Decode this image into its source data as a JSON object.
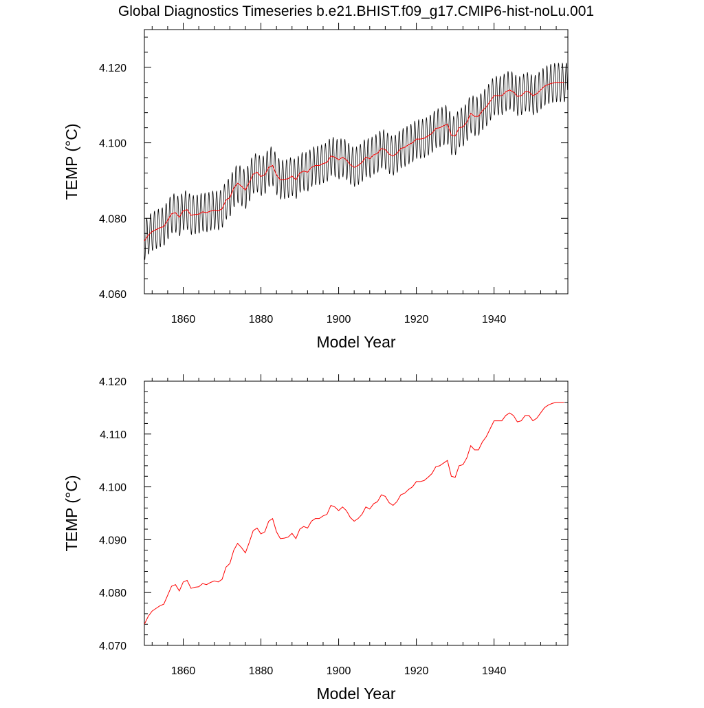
{
  "page": {
    "title": "Global Diagnostics Timeseries b.e21.BHIST.f09_g17.CMIP6-hist-noLu.001"
  },
  "colors": {
    "monthly_line": "#000000",
    "annual_line": "#ff0000",
    "axis": "#000000"
  },
  "chart_data": [
    {
      "type": "line",
      "title": "Global Diagnostics Timeseries b.e21.BHIST.f09_g17.CMIP6-hist-noLu.001",
      "xlabel": "Model Year",
      "ylabel": "TEMP (°C)",
      "xlim": [
        1850,
        1959
      ],
      "ylim": [
        4.06,
        4.13
      ],
      "xticks": [
        1860,
        1880,
        1900,
        1920,
        1940
      ],
      "xtick_labels": [
        "1860",
        "1880",
        "1900",
        "1920",
        "1940"
      ],
      "yticks": [
        4.06,
        4.08,
        4.1,
        4.12
      ],
      "ytick_labels": [
        "4.060",
        "4.080",
        "4.100",
        "4.120"
      ],
      "grid": false,
      "legend": "none",
      "series": [
        {
          "style": "monthly-seasonal-cycle",
          "color": "#000000",
          "seasonal_amplitude": 0.0052,
          "x_start": 1850.04,
          "x_step": 0.0833,
          "x_end": 1958.96,
          "follows_annual_mean": true
        },
        {
          "style": "annual-mean",
          "color": "#ff0000",
          "x": [
            1850,
            1851,
            1852,
            1853,
            1854,
            1855,
            1856,
            1857,
            1858,
            1859,
            1860,
            1861,
            1862,
            1863,
            1864,
            1865,
            1866,
            1867,
            1868,
            1869,
            1870,
            1871,
            1872,
            1873,
            1874,
            1875,
            1876,
            1877,
            1878,
            1879,
            1880,
            1881,
            1882,
            1883,
            1884,
            1885,
            1886,
            1887,
            1888,
            1889,
            1890,
            1891,
            1892,
            1893,
            1894,
            1895,
            1896,
            1897,
            1898,
            1899,
            1900,
            1901,
            1902,
            1903,
            1904,
            1905,
            1906,
            1907,
            1908,
            1909,
            1910,
            1911,
            1912,
            1913,
            1914,
            1915,
            1916,
            1917,
            1918,
            1919,
            1920,
            1921,
            1922,
            1923,
            1924,
            1925,
            1926,
            1927,
            1928,
            1929,
            1930,
            1931,
            1932,
            1933,
            1934,
            1935,
            1936,
            1937,
            1938,
            1939,
            1940,
            1941,
            1942,
            1943,
            1944,
            1945,
            1946,
            1947,
            1948,
            1949,
            1950,
            1951,
            1952,
            1953,
            1954,
            1955,
            1956,
            1957,
            1958
          ],
          "y": [
            4.074,
            4.0755,
            4.0765,
            4.077,
            4.0775,
            4.0778,
            4.0795,
            4.0812,
            4.0815,
            4.0803,
            4.082,
            4.0823,
            4.0808,
            4.081,
            4.0811,
            4.0817,
            4.0815,
            4.0819,
            4.0822,
            4.082,
            4.0825,
            4.0848,
            4.0855,
            4.088,
            4.0893,
            4.0885,
            4.0875,
            4.0895,
            4.0917,
            4.0922,
            4.0911,
            4.0915,
            4.0935,
            4.094,
            4.0915,
            4.0902,
            4.0903,
            4.0905,
            4.0912,
            4.0902,
            4.092,
            4.0925,
            4.0922,
            4.0935,
            4.094,
            4.094,
            4.0945,
            4.0948,
            4.0965,
            4.0962,
            4.0955,
            4.0962,
            4.0955,
            4.0942,
            4.0935,
            4.094,
            4.0948,
            4.0962,
            4.0958,
            4.0968,
            4.0972,
            4.0985,
            4.0982,
            4.097,
            4.0965,
            4.0972,
            4.0985,
            4.0988,
            4.0995,
            4.1,
            4.101,
            4.101,
            4.1012,
            4.1018,
            4.1025,
            4.1038,
            4.104,
            4.1045,
            4.105,
            4.102,
            4.1018,
            4.104,
            4.1042,
            4.1055,
            4.1078,
            4.107,
            4.107,
            4.1085,
            4.1095,
            4.111,
            4.1125,
            4.1125,
            4.1125,
            4.1135,
            4.114,
            4.1135,
            4.1123,
            4.1125,
            4.1135,
            4.1135,
            4.1125,
            4.113,
            4.114,
            4.115,
            4.1155,
            4.1158,
            4.116,
            4.116,
            4.116
          ]
        }
      ]
    },
    {
      "type": "line",
      "xlabel": "Model Year",
      "ylabel": "TEMP (°C)",
      "xlim": [
        1850,
        1959
      ],
      "ylim": [
        4.07,
        4.12
      ],
      "xticks": [
        1860,
        1880,
        1900,
        1920,
        1940
      ],
      "xtick_labels": [
        "1860",
        "1880",
        "1900",
        "1920",
        "1940"
      ],
      "yticks": [
        4.07,
        4.08,
        4.09,
        4.1,
        4.11,
        4.12
      ],
      "ytick_labels": [
        "4.070",
        "4.080",
        "4.090",
        "4.100",
        "4.110",
        "4.120"
      ],
      "grid": false,
      "legend": "none",
      "series": [
        {
          "style": "annual-mean",
          "color": "#ff0000",
          "same_as_annual_mean_of_chart": 0
        }
      ]
    }
  ]
}
